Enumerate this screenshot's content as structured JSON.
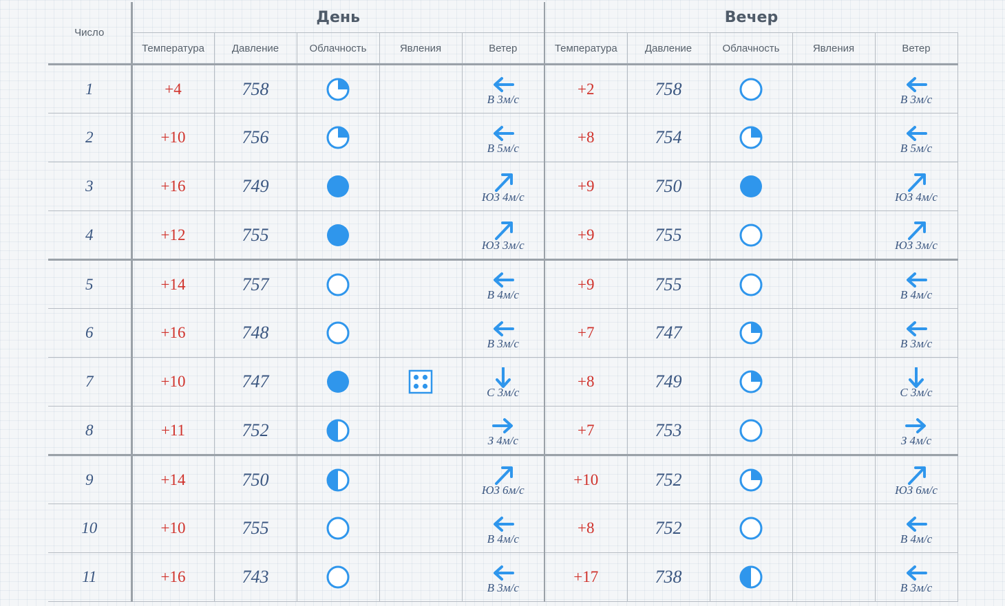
{
  "headers": {
    "date": "Число",
    "day": "День",
    "evening": "Вечер",
    "columns": [
      "Температура",
      "Давление",
      "Облачность",
      "Явления",
      "Ветер"
    ]
  },
  "colors": {
    "accent_blue": "#2f96ec",
    "temperature_red": "#d0322b",
    "number_text": "#3a5680",
    "grid_line": "#b6bcc3"
  },
  "legend_note": {
    "cloud_icons": [
      "cloud-clear (empty circle)",
      "cloud-quarter",
      "cloud-half",
      "cloud-full"
    ],
    "phenomena_icons": [
      "precipitation-grid-icon"
    ],
    "wind_arrows": [
      "arrow-left = В",
      "arrow-right = З",
      "arrow-down = С",
      "arrow-up-right = ЮЗ"
    ]
  },
  "rows": [
    {
      "num": "1",
      "day": {
        "temp": "+4",
        "pres": "758",
        "cloud": "quarter",
        "phen": "",
        "wind_dir": "left",
        "wind": "В 3м/с"
      },
      "eve": {
        "temp": "+2",
        "pres": "758",
        "cloud": "clear",
        "phen": "",
        "wind_dir": "left",
        "wind": "В 3м/с"
      }
    },
    {
      "num": "2",
      "day": {
        "temp": "+10",
        "pres": "756",
        "cloud": "quarter",
        "phen": "",
        "wind_dir": "left",
        "wind": "В 5м/с"
      },
      "eve": {
        "temp": "+8",
        "pres": "754",
        "cloud": "quarter",
        "phen": "",
        "wind_dir": "left",
        "wind": "В 5м/с"
      }
    },
    {
      "num": "3",
      "day": {
        "temp": "+16",
        "pres": "749",
        "cloud": "full",
        "phen": "",
        "wind_dir": "up-right",
        "wind": "ЮЗ 4м/с"
      },
      "eve": {
        "temp": "+9",
        "pres": "750",
        "cloud": "full",
        "phen": "",
        "wind_dir": "up-right",
        "wind": "ЮЗ 4м/с"
      }
    },
    {
      "num": "4",
      "day": {
        "temp": "+12",
        "pres": "755",
        "cloud": "full",
        "phen": "",
        "wind_dir": "up-right",
        "wind": "ЮЗ 3м/с"
      },
      "eve": {
        "temp": "+9",
        "pres": "755",
        "cloud": "clear",
        "phen": "",
        "wind_dir": "up-right",
        "wind": "ЮЗ 3м/с"
      }
    },
    {
      "num": "5",
      "day": {
        "temp": "+14",
        "pres": "757",
        "cloud": "clear",
        "phen": "",
        "wind_dir": "left",
        "wind": "В 4м/с"
      },
      "eve": {
        "temp": "+9",
        "pres": "755",
        "cloud": "clear",
        "phen": "",
        "wind_dir": "left",
        "wind": "В 4м/с"
      }
    },
    {
      "num": "6",
      "day": {
        "temp": "+16",
        "pres": "748",
        "cloud": "clear",
        "phen": "",
        "wind_dir": "left",
        "wind": "В 3м/с"
      },
      "eve": {
        "temp": "+7",
        "pres": "747",
        "cloud": "quarter",
        "phen": "",
        "wind_dir": "left",
        "wind": "В 3м/с"
      }
    },
    {
      "num": "7",
      "day": {
        "temp": "+10",
        "pres": "747",
        "cloud": "full",
        "phen": "precip",
        "wind_dir": "down",
        "wind": "С 3м/с"
      },
      "eve": {
        "temp": "+8",
        "pres": "749",
        "cloud": "quarter",
        "phen": "",
        "wind_dir": "down",
        "wind": "С 3м/с"
      }
    },
    {
      "num": "8",
      "day": {
        "temp": "+11",
        "pres": "752",
        "cloud": "half",
        "phen": "",
        "wind_dir": "right",
        "wind": "З 4м/с"
      },
      "eve": {
        "temp": "+7",
        "pres": "753",
        "cloud": "clear",
        "phen": "",
        "wind_dir": "right",
        "wind": "З 4м/с"
      }
    },
    {
      "num": "9",
      "day": {
        "temp": "+14",
        "pres": "750",
        "cloud": "half",
        "phen": "",
        "wind_dir": "up-right",
        "wind": "ЮЗ 6м/с"
      },
      "eve": {
        "temp": "+10",
        "pres": "752",
        "cloud": "quarter",
        "phen": "",
        "wind_dir": "up-right",
        "wind": "ЮЗ 6м/с"
      }
    },
    {
      "num": "10",
      "day": {
        "temp": "+10",
        "pres": "755",
        "cloud": "clear",
        "phen": "",
        "wind_dir": "left",
        "wind": "В 4м/с"
      },
      "eve": {
        "temp": "+8",
        "pres": "752",
        "cloud": "clear",
        "phen": "",
        "wind_dir": "left",
        "wind": "В 4м/с"
      }
    },
    {
      "num": "11",
      "day": {
        "temp": "+16",
        "pres": "743",
        "cloud": "clear",
        "phen": "",
        "wind_dir": "left",
        "wind": "В 3м/с"
      },
      "eve": {
        "temp": "+17",
        "pres": "738",
        "cloud": "half",
        "phen": "",
        "wind_dir": "left",
        "wind": "В 3м/с"
      }
    }
  ]
}
